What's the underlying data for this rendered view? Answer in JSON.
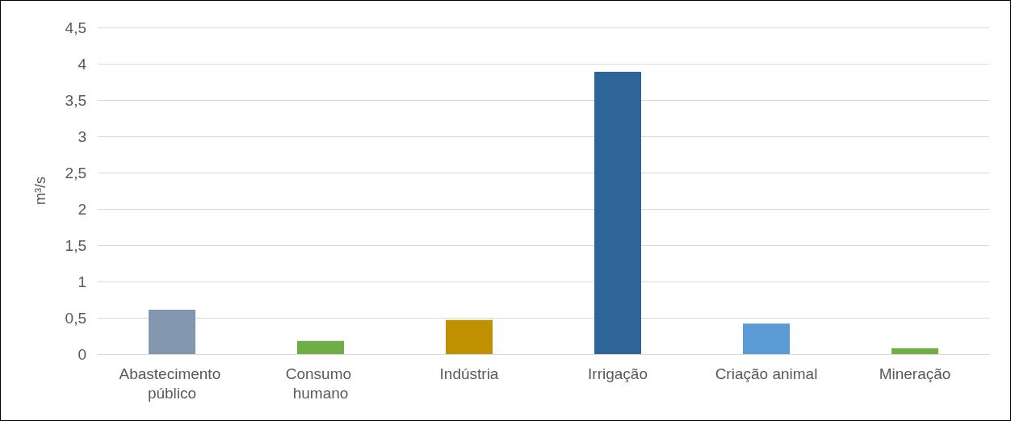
{
  "chart_data": {
    "type": "bar",
    "ylabel": "m³/s",
    "categories": [
      "Abastecimento público",
      "Consumo humano",
      "Indústria",
      "Irrigação",
      "Criação animal",
      "Mineração"
    ],
    "values": [
      0.61,
      0.18,
      0.47,
      3.89,
      0.42,
      0.08
    ],
    "colors": [
      "#8497b0",
      "#70ad47",
      "#bf9000",
      "#2e6599",
      "#5b9bd5",
      "#70ad47"
    ],
    "ylim": [
      0,
      4.5
    ],
    "yticks": [
      0,
      {
        "value": 0.5,
        "label": "0,5"
      },
      1,
      {
        "value": 1.5,
        "label": "1,5"
      },
      2,
      {
        "value": 2.5,
        "label": "2,5"
      },
      3,
      {
        "value": 3.5,
        "label": "3,5"
      },
      4,
      {
        "value": 4.5,
        "label": "4,5"
      }
    ],
    "grid": "y"
  }
}
